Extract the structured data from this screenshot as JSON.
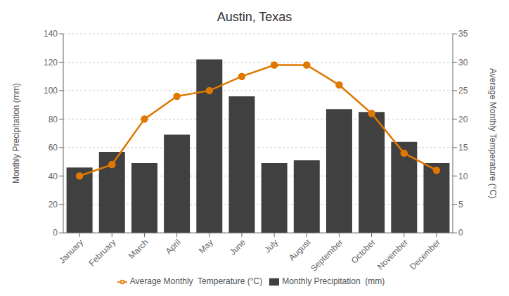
{
  "chart_data": {
    "type": "bar",
    "title": "Austin, Texas",
    "categories": [
      "January",
      "February",
      "March",
      "April",
      "May",
      "June",
      "July",
      "August",
      "September",
      "October",
      "November",
      "December"
    ],
    "series": [
      {
        "name": "Monthly Precipitation  (mm)",
        "type": "bar",
        "color": "#404040",
        "values": [
          46,
          57,
          49,
          69,
          122,
          96,
          49,
          51,
          87,
          85,
          64,
          49
        ]
      },
      {
        "name": "Average Monthly  Temperature (°C)",
        "type": "line",
        "color": "#E07800",
        "axis": "y2",
        "marker": "circle",
        "values": [
          10,
          12,
          20,
          24,
          25,
          27.5,
          29.5,
          29.5,
          26,
          21,
          14,
          11
        ]
      }
    ],
    "ylabel": "Monthly Precipitation  (mm)",
    "y2label": "Average Monthly  Temperature (°C)",
    "ylim": [
      0,
      140
    ],
    "yticks": [
      0,
      20,
      40,
      60,
      80,
      100,
      120,
      140
    ],
    "y2lim": [
      0,
      35
    ],
    "y2ticks": [
      0,
      5,
      10,
      15,
      20,
      25,
      30,
      35
    ],
    "grid": true,
    "legend": "bottom"
  }
}
